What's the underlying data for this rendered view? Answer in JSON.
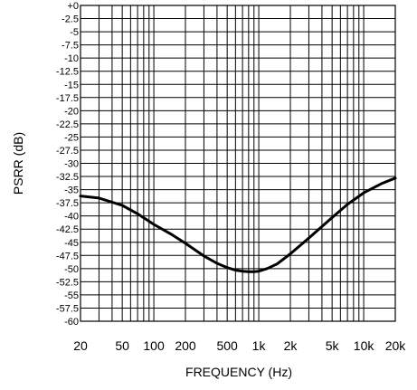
{
  "chart_data": {
    "type": "line",
    "title": "",
    "xlabel": "FREQUENCY (Hz)",
    "ylabel": "PSRR (dB)",
    "x_scale": "log",
    "xlim": [
      20,
      20000
    ],
    "ylim": [
      -60,
      0
    ],
    "grid": true,
    "x_tick_labels": [
      "20",
      "50",
      "100",
      "200",
      "500",
      "1k",
      "2k",
      "5k",
      "10k",
      "20k"
    ],
    "y_tick_labels": [
      "+0",
      "-2.5",
      "-5",
      "-7.5",
      "-10",
      "-12.5",
      "-15",
      "-17.5",
      "-20",
      "-22.5",
      "-25",
      "-27.5",
      "-30",
      "-32.5",
      "-35",
      "-37.5",
      "-40",
      "-42.5",
      "-45",
      "-47.5",
      "-50",
      "-52.5",
      "-55",
      "-57.5",
      "-60"
    ],
    "series": [
      {
        "x": [
          20,
          30,
          50,
          70,
          100,
          150,
          200,
          300,
          400,
          500,
          600,
          700,
          800,
          900,
          1000,
          1200,
          1500,
          2000,
          3000,
          5000,
          7000,
          10000,
          15000,
          20000
        ],
        "y": [
          -36.2,
          -36.6,
          -38.0,
          -39.6,
          -41.6,
          -43.6,
          -45.2,
          -47.6,
          -49.0,
          -49.8,
          -50.3,
          -50.5,
          -50.6,
          -50.6,
          -50.5,
          -50.0,
          -49.1,
          -47.2,
          -44.2,
          -40.3,
          -37.8,
          -35.6,
          -33.8,
          -32.8
        ],
        "color": "#000000"
      }
    ]
  }
}
